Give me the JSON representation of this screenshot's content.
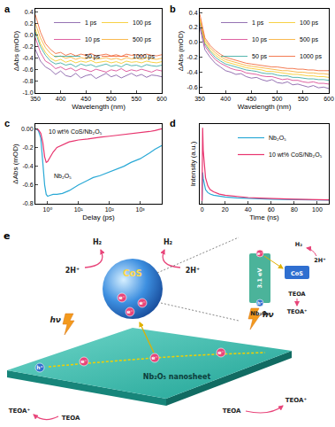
{
  "chart_data": [
    {
      "type": "line",
      "title": "a",
      "xlabel": "Wavelength (nm)",
      "ylabel": "ΔAbs (mOD)",
      "x": [
        350,
        360,
        370,
        380,
        390,
        400,
        410,
        420,
        430,
        440,
        450,
        460,
        470,
        480,
        490,
        500,
        510,
        520,
        530,
        540,
        550,
        560,
        570,
        580,
        590,
        600
      ],
      "series": [
        {
          "name": "1 ps",
          "color": "#7b4fa0",
          "values": [
            -0.25,
            -0.45,
            -0.55,
            -0.6,
            -0.68,
            -0.62,
            -0.7,
            -0.72,
            -0.66,
            -0.74,
            -0.7,
            -0.68,
            -0.75,
            -0.7,
            -0.66,
            -0.72,
            -0.69,
            -0.74,
            -0.7,
            -0.66,
            -0.71,
            -0.68,
            -0.73,
            -0.69,
            -0.7,
            -0.72
          ]
        },
        {
          "name": "10 ps",
          "color": "#d63a8a",
          "values": [
            -0.05,
            -0.3,
            -0.45,
            -0.5,
            -0.58,
            -0.55,
            -0.6,
            -0.57,
            -0.62,
            -0.58,
            -0.6,
            -0.63,
            -0.59,
            -0.61,
            -0.64,
            -0.6,
            -0.62,
            -0.58,
            -0.63,
            -0.6,
            -0.62,
            -0.59,
            -0.61,
            -0.64,
            -0.6,
            -0.62
          ]
        },
        {
          "name": "50 ps",
          "color": "#2ba39a",
          "values": [
            0.05,
            -0.2,
            -0.35,
            -0.45,
            -0.5,
            -0.48,
            -0.52,
            -0.5,
            -0.55,
            -0.5,
            -0.53,
            -0.51,
            -0.55,
            -0.52,
            -0.5,
            -0.54,
            -0.52,
            -0.55,
            -0.5,
            -0.53,
            -0.52,
            -0.55,
            -0.51,
            -0.53,
            -0.54,
            -0.52
          ]
        },
        {
          "name": "100 ps",
          "color": "#f5c518",
          "values": [
            0.1,
            -0.15,
            -0.3,
            -0.4,
            -0.45,
            -0.42,
            -0.47,
            -0.44,
            -0.48,
            -0.45,
            -0.47,
            -0.44,
            -0.48,
            -0.46,
            -0.45,
            -0.48,
            -0.46,
            -0.49,
            -0.45,
            -0.47,
            -0.46,
            -0.48,
            -0.45,
            -0.47,
            -0.48,
            -0.46
          ]
        },
        {
          "name": "500 ps",
          "color": "#f7a823",
          "values": [
            0.2,
            -0.05,
            -0.22,
            -0.32,
            -0.38,
            -0.36,
            -0.4,
            -0.38,
            -0.42,
            -0.39,
            -0.41,
            -0.38,
            -0.42,
            -0.4,
            -0.39,
            -0.42,
            -0.4,
            -0.43,
            -0.39,
            -0.41,
            -0.4,
            -0.42,
            -0.39,
            -0.41,
            -0.42,
            -0.4
          ]
        },
        {
          "name": "1000 ps",
          "color": "#f05a28",
          "values": [
            0.35,
            0.05,
            -0.15,
            -0.25,
            -0.32,
            -0.3,
            -0.35,
            -0.32,
            -0.36,
            -0.33,
            -0.35,
            -0.32,
            -0.36,
            -0.34,
            -0.33,
            -0.36,
            -0.34,
            -0.37,
            -0.33,
            -0.35,
            -0.34,
            -0.36,
            -0.33,
            -0.35,
            -0.36,
            -0.34
          ]
        }
      ],
      "xlim": [
        350,
        600
      ],
      "xticks": [
        350,
        400,
        450,
        500,
        550,
        600
      ],
      "ylim": [
        -1.0,
        0.45
      ],
      "yticks": [
        {
          "value": -1.0,
          "label": "-1.0"
        },
        -0.8,
        -0.6,
        -0.4,
        -0.2,
        {
          "value": 0,
          "label": "0.0"
        },
        0.2,
        0.4
      ],
      "legend": "upper right"
    },
    {
      "type": "line",
      "title": "b",
      "xlabel": "Wavelength (nm)",
      "ylabel": "ΔAbs (mOD)",
      "x": [
        350,
        360,
        370,
        380,
        390,
        400,
        410,
        420,
        430,
        440,
        450,
        460,
        470,
        480,
        490,
        500,
        510,
        520,
        530,
        540,
        550,
        560,
        570,
        580,
        590,
        600
      ],
      "series": [
        {
          "name": "1 ps",
          "color": "#7b4fa0",
          "values": [
            0.2,
            -0.1,
            -0.2,
            -0.28,
            -0.33,
            -0.38,
            -0.4,
            -0.43,
            -0.42,
            -0.46,
            -0.48,
            -0.47,
            -0.5,
            -0.52,
            -0.5,
            -0.54,
            -0.55,
            -0.53,
            -0.57,
            -0.56,
            -0.58,
            -0.6,
            -0.58,
            -0.61,
            -0.6,
            -0.62
          ]
        },
        {
          "name": "10 ps",
          "color": "#d63a8a",
          "values": [
            0.25,
            -0.05,
            -0.15,
            -0.23,
            -0.28,
            -0.32,
            -0.35,
            -0.37,
            -0.38,
            -0.41,
            -0.42,
            -0.43,
            -0.45,
            -0.46,
            -0.46,
            -0.48,
            -0.5,
            -0.49,
            -0.51,
            -0.51,
            -0.53,
            -0.54,
            -0.53,
            -0.55,
            -0.55,
            -0.56
          ]
        },
        {
          "name": "50 ps",
          "color": "#2ba39a",
          "values": [
            0.28,
            -0.02,
            -0.12,
            -0.2,
            -0.25,
            -0.29,
            -0.31,
            -0.33,
            -0.35,
            -0.37,
            -0.38,
            -0.39,
            -0.41,
            -0.42,
            -0.42,
            -0.44,
            -0.45,
            -0.45,
            -0.47,
            -0.47,
            -0.48,
            -0.49,
            -0.49,
            -0.5,
            -0.5,
            -0.51
          ]
        },
        {
          "name": "100 ps",
          "color": "#f5c518",
          "values": [
            0.3,
            0.0,
            -0.1,
            -0.17,
            -0.22,
            -0.26,
            -0.28,
            -0.3,
            -0.32,
            -0.34,
            -0.35,
            -0.36,
            -0.37,
            -0.39,
            -0.39,
            -0.4,
            -0.41,
            -0.42,
            -0.43,
            -0.43,
            -0.44,
            -0.45,
            -0.45,
            -0.46,
            -0.46,
            -0.47
          ]
        },
        {
          "name": "500 ps",
          "color": "#f7a823",
          "values": [
            0.33,
            0.03,
            -0.07,
            -0.14,
            -0.19,
            -0.23,
            -0.25,
            -0.27,
            -0.29,
            -0.31,
            -0.32,
            -0.33,
            -0.34,
            -0.35,
            -0.36,
            -0.37,
            -0.38,
            -0.38,
            -0.39,
            -0.4,
            -0.4,
            -0.41,
            -0.41,
            -0.42,
            -0.42,
            -0.43
          ]
        },
        {
          "name": "1000 ps",
          "color": "#f05a28",
          "values": [
            0.38,
            0.06,
            -0.04,
            -0.11,
            -0.16,
            -0.2,
            -0.22,
            -0.24,
            -0.26,
            -0.28,
            -0.29,
            -0.3,
            -0.31,
            -0.32,
            -0.33,
            -0.33,
            -0.34,
            -0.35,
            -0.35,
            -0.36,
            -0.36,
            -0.37,
            -0.37,
            -0.38,
            -0.38,
            -0.38
          ]
        }
      ],
      "xlim": [
        350,
        600
      ],
      "xticks": [
        350,
        400,
        450,
        500,
        550,
        600
      ],
      "ylim": [
        -0.68,
        0.45
      ],
      "yticks": [
        -0.6,
        -0.4,
        -0.2,
        {
          "value": 0,
          "label": "0.0"
        },
        0.2,
        0.4
      ],
      "legend": "upper right"
    },
    {
      "type": "line",
      "title": "c",
      "xlabel": "Delay (ps)",
      "ylabel": "ΔAbs (mOD)",
      "log": "x",
      "x": [
        0.4,
        0.5,
        0.6,
        0.7,
        0.8,
        0.9,
        1,
        1.2,
        1.5,
        2,
        3,
        5,
        7,
        10,
        20,
        30,
        50,
        100,
        200,
        300,
        500,
        1000,
        2000,
        3000,
        5000
      ],
      "series": [
        {
          "color": "#2aa9d6",
          "values": [
            0,
            -0.02,
            -0.1,
            -0.35,
            -0.6,
            -0.7,
            -0.72,
            -0.71,
            -0.7,
            -0.7,
            -0.69,
            -0.66,
            -0.63,
            -0.6,
            -0.55,
            -0.52,
            -0.5,
            -0.46,
            -0.42,
            -0.4,
            -0.36,
            -0.32,
            -0.26,
            -0.22,
            -0.18
          ]
        },
        {
          "color": "#e8356f",
          "values": [
            0,
            -0.01,
            -0.05,
            -0.15,
            -0.3,
            -0.36,
            -0.35,
            -0.3,
            -0.25,
            -0.2,
            -0.17,
            -0.14,
            -0.13,
            -0.12,
            -0.11,
            -0.1,
            -0.09,
            -0.08,
            -0.07,
            -0.06,
            -0.05,
            -0.04,
            -0.03,
            -0.02,
            0.0
          ]
        }
      ],
      "xlim": [
        0.4,
        5000
      ],
      "xticks": [
        {
          "value": 1,
          "label": "10⁰"
        },
        {
          "value": 10,
          "label": "10¹"
        },
        {
          "value": 100,
          "label": "10²"
        },
        {
          "value": 1000,
          "label": "10³"
        }
      ],
      "ylim": [
        -0.8,
        0.05
      ],
      "yticks": [
        -0.8,
        -0.6,
        -0.4,
        -0.2,
        {
          "value": 0,
          "label": "0.00"
        }
      ],
      "annotations": [
        {
          "text": "10 wt% CoS/Nb₂O₅",
          "x": 8,
          "y": -0.03
        },
        {
          "text": "Nb₂O₅",
          "x": 3,
          "y": -0.5
        }
      ]
    },
    {
      "type": "line",
      "title": "d",
      "xlabel": "Time (ns)",
      "ylabel": "Intensity (a.u.)",
      "tick_labels": "x",
      "x": [
        0,
        0.5,
        1,
        2,
        3,
        5,
        7,
        10,
        15,
        20,
        30,
        40,
        50,
        60,
        70,
        80,
        90,
        100,
        110
      ],
      "series": [
        {
          "name": "Nb₂O₅",
          "color": "#2aa9d6",
          "values": [
            0.02,
            0.4,
            0.32,
            0.22,
            0.17,
            0.13,
            0.11,
            0.095,
            0.08,
            0.07,
            0.058,
            0.05,
            0.045,
            0.04,
            0.037,
            0.034,
            0.032,
            0.03,
            0.028
          ]
        },
        {
          "name": "10 wt% CoS/Nb₂O₅",
          "color": "#e8356f",
          "values": [
            0.02,
            1.0,
            0.7,
            0.45,
            0.33,
            0.22,
            0.17,
            0.14,
            0.11,
            0.095,
            0.075,
            0.063,
            0.055,
            0.048,
            0.043,
            0.04,
            0.037,
            0.035,
            0.033
          ]
        }
      ],
      "xlim": [
        -2,
        110
      ],
      "xticks": [
        0,
        20,
        40,
        60,
        80,
        100
      ],
      "ylim": [
        -0.02,
        1.05
      ],
      "legend": "upper right"
    }
  ],
  "diagram": {
    "label": "e",
    "sheet": "Nb₂O₅ nanosheet",
    "sphere": "CoS",
    "light": "hν",
    "electron": "e⁻",
    "hole": "h⁺",
    "products": [
      "H₂",
      "2H⁺"
    ],
    "donors": [
      "TEOA⁺",
      "TEOA"
    ],
    "inset": {
      "gap": "3.1 eV",
      "cocatalyst": "CoS",
      "semiconductor": "Nb₂O₅",
      "products": [
        "H₂",
        "2H⁺"
      ],
      "donors": [
        "TEOA",
        "TEOA⁺"
      ]
    }
  }
}
